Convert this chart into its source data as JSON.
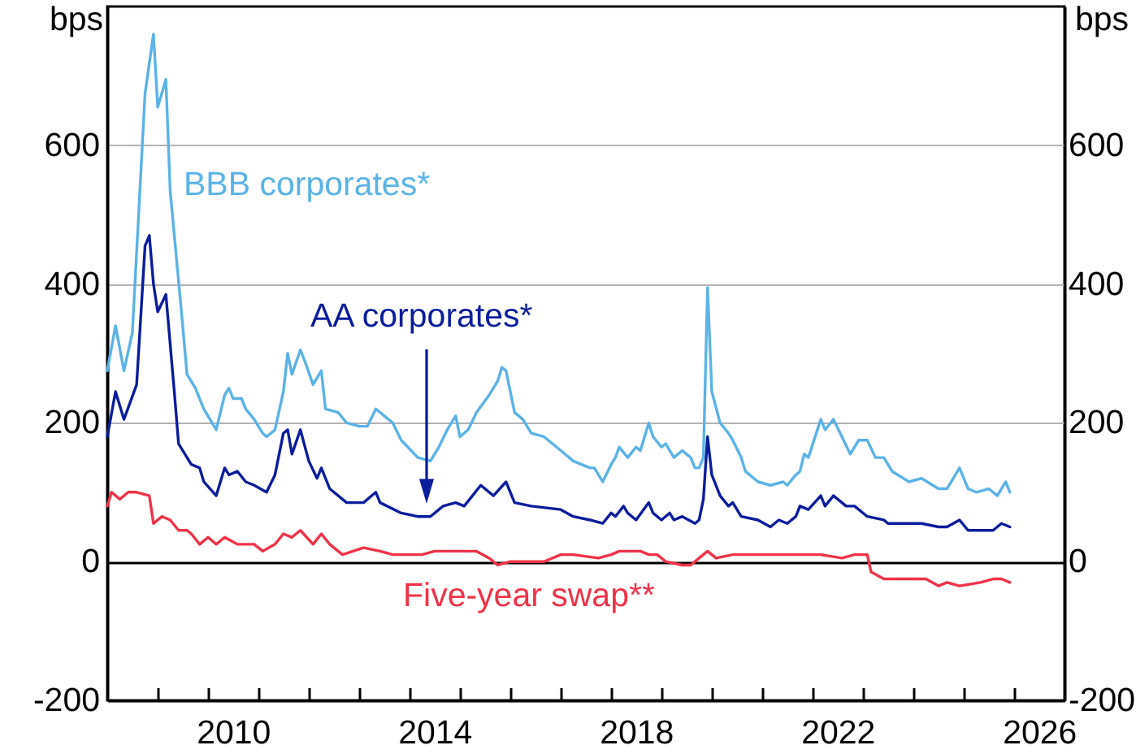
{
  "chart_data": {
    "type": "line",
    "ylabel": "bps",
    "y2label": "bps",
    "xlim": [
      "2008-01",
      "2027-01"
    ],
    "xticks": [
      {
        "value": "2009-01",
        "label": null
      },
      {
        "value": "2010-01",
        "label": null
      },
      {
        "value": "2010-07",
        "label": "2010"
      },
      {
        "value": "2011-01",
        "label": null
      },
      {
        "value": "2012-01",
        "label": null
      },
      {
        "value": "2013-01",
        "label": null
      },
      {
        "value": "2014-01",
        "label": null
      },
      {
        "value": "2014-07",
        "label": "2014"
      },
      {
        "value": "2015-01",
        "label": null
      },
      {
        "value": "2016-01",
        "label": null
      },
      {
        "value": "2017-01",
        "label": null
      },
      {
        "value": "2018-01",
        "label": null
      },
      {
        "value": "2018-07",
        "label": "2018"
      },
      {
        "value": "2019-01",
        "label": null
      },
      {
        "value": "2020-01",
        "label": null
      },
      {
        "value": "2021-01",
        "label": null
      },
      {
        "value": "2022-01",
        "label": null
      },
      {
        "value": "2022-07",
        "label": "2022"
      },
      {
        "value": "2023-01",
        "label": null
      },
      {
        "value": "2024-01",
        "label": null
      },
      {
        "value": "2025-01",
        "label": null
      },
      {
        "value": "2026-01",
        "label": null
      },
      {
        "value": "2026-07",
        "label": "2026"
      }
    ],
    "ylim": [
      -200,
      800
    ],
    "yticks": [
      -200,
      0,
      200,
      400,
      600
    ],
    "y2lim": [
      -200,
      800
    ],
    "y2ticks": [
      -200,
      0,
      200,
      400,
      600
    ],
    "grid": "y",
    "series": [
      {
        "name": "BBB corporates*",
        "color": "#5bb3e6",
        "x": [
          "2008-01",
          "2008-03",
          "2008-05",
          "2008-07",
          "2008-10",
          "2008-12",
          "2009-01",
          "2009-03",
          "2009-04",
          "2009-07",
          "2009-08",
          "2009-10",
          "2009-12",
          "2010-03",
          "2010-05",
          "2010-06",
          "2010-07",
          "2010-09",
          "2010-10",
          "2010-12",
          "2011-02",
          "2011-03",
          "2011-05",
          "2011-07",
          "2011-08",
          "2011-09",
          "2011-11",
          "2011-12",
          "2012-02",
          "2012-04",
          "2012-05",
          "2012-08",
          "2012-10",
          "2013-01",
          "2013-03",
          "2013-05",
          "2013-07",
          "2013-09",
          "2013-11",
          "2014-03",
          "2014-06",
          "2014-08",
          "2014-10",
          "2014-12",
          "2015-01",
          "2015-03",
          "2015-05",
          "2015-08",
          "2015-10",
          "2015-11",
          "2015-12",
          "2016-02",
          "2016-04",
          "2016-06",
          "2016-09",
          "2017-01",
          "2017-04",
          "2017-08",
          "2017-09",
          "2017-11",
          "2018-01",
          "2018-02",
          "2018-03",
          "2018-05",
          "2018-07",
          "2018-08",
          "2018-10",
          "2018-11",
          "2019-01",
          "2019-02",
          "2019-04",
          "2019-06",
          "2019-08",
          "2019-09",
          "2019-10",
          "2019-11",
          "2019-12",
          "2020-01",
          "2020-03",
          "2020-05",
          "2020-06",
          "2020-08",
          "2020-09",
          "2020-12",
          "2021-03",
          "2021-06",
          "2021-07",
          "2021-09",
          "2021-10",
          "2021-11",
          "2021-12",
          "2022-03",
          "2022-04",
          "2022-06",
          "2022-08",
          "2022-10",
          "2022-12",
          "2023-02",
          "2023-04",
          "2023-06",
          "2023-08",
          "2023-12",
          "2024-03",
          "2024-07",
          "2024-09",
          "2024-12",
          "2025-02",
          "2025-04",
          "2025-07",
          "2025-09",
          "2025-11",
          "2025-12"
        ],
        "values": [
          275,
          340,
          275,
          330,
          675,
          760,
          655,
          695,
          535,
          340,
          270,
          250,
          220,
          190,
          240,
          250,
          235,
          235,
          220,
          205,
          185,
          180,
          190,
          245,
          300,
          270,
          305,
          290,
          255,
          275,
          220,
          215,
          200,
          195,
          195,
          220,
          210,
          200,
          175,
          150,
          145,
          165,
          190,
          210,
          180,
          190,
          215,
          240,
          260,
          280,
          275,
          215,
          205,
          185,
          180,
          160,
          145,
          135,
          135,
          115,
          140,
          150,
          165,
          150,
          165,
          160,
          200,
          180,
          165,
          170,
          150,
          160,
          150,
          135,
          135,
          150,
          395,
          245,
          200,
          185,
          175,
          150,
          130,
          115,
          110,
          115,
          110,
          125,
          130,
          155,
          150,
          205,
          190,
          205,
          180,
          155,
          175,
          175,
          150,
          150,
          130,
          115,
          120,
          105,
          105,
          135,
          105,
          100,
          105,
          95,
          115,
          100
        ]
      },
      {
        "name": "AA corporates*",
        "color": "#0b1d9c",
        "x": [
          "2008-01",
          "2008-03",
          "2008-05",
          "2008-08",
          "2008-10",
          "2008-11",
          "2008-12",
          "2009-01",
          "2009-03",
          "2009-05",
          "2009-06",
          "2009-09",
          "2009-11",
          "2009-12",
          "2010-03",
          "2010-05",
          "2010-06",
          "2010-08",
          "2010-10",
          "2010-12",
          "2011-03",
          "2011-05",
          "2011-07",
          "2011-08",
          "2011-09",
          "2011-11",
          "2012-01",
          "2012-03",
          "2012-04",
          "2012-06",
          "2012-10",
          "2013-02",
          "2013-05",
          "2013-06",
          "2013-11",
          "2014-03",
          "2014-06",
          "2014-09",
          "2014-12",
          "2015-02",
          "2015-06",
          "2015-09",
          "2015-12",
          "2016-02",
          "2016-06",
          "2017-01",
          "2017-04",
          "2017-08",
          "2017-11",
          "2018-01",
          "2018-02",
          "2018-04",
          "2018-05",
          "2018-07",
          "2018-10",
          "2018-11",
          "2019-01",
          "2019-03",
          "2019-04",
          "2019-06",
          "2019-09",
          "2019-10",
          "2019-11",
          "2019-12",
          "2020-01",
          "2020-03",
          "2020-05",
          "2020-06",
          "2020-08",
          "2020-12",
          "2021-03",
          "2021-05",
          "2021-07",
          "2021-09",
          "2021-10",
          "2021-12",
          "2022-03",
          "2022-04",
          "2022-06",
          "2022-09",
          "2022-11",
          "2023-02",
          "2023-06",
          "2023-07",
          "2023-11",
          "2024-03",
          "2024-07",
          "2024-09",
          "2024-12",
          "2025-02",
          "2025-05",
          "2025-08",
          "2025-10",
          "2025-12"
        ],
        "values": [
          180,
          245,
          205,
          255,
          455,
          470,
          400,
          360,
          385,
          245,
          170,
          140,
          135,
          115,
          95,
          135,
          125,
          130,
          115,
          110,
          100,
          125,
          185,
          190,
          155,
          190,
          145,
          120,
          135,
          105,
          85,
          85,
          100,
          85,
          70,
          65,
          65,
          80,
          85,
          80,
          110,
          95,
          115,
          85,
          80,
          75,
          65,
          60,
          55,
          70,
          65,
          80,
          70,
          60,
          85,
          70,
          60,
          70,
          60,
          65,
          55,
          60,
          90,
          180,
          125,
          95,
          80,
          85,
          65,
          60,
          50,
          60,
          55,
          65,
          80,
          75,
          95,
          80,
          95,
          80,
          80,
          65,
          60,
          55,
          55,
          55,
          50,
          50,
          60,
          45,
          45,
          45,
          55,
          50
        ]
      },
      {
        "name": "Five-year swap**",
        "color": "#ee3348",
        "x": [
          "2008-01",
          "2008-02",
          "2008-04",
          "2008-06",
          "2008-08",
          "2008-11",
          "2008-12",
          "2009-02",
          "2009-04",
          "2009-06",
          "2009-08",
          "2009-09",
          "2009-11",
          "2010-01",
          "2010-03",
          "2010-05",
          "2010-08",
          "2010-10",
          "2010-12",
          "2011-02",
          "2011-05",
          "2011-07",
          "2011-09",
          "2011-11",
          "2012-02",
          "2012-04",
          "2012-06",
          "2012-09",
          "2013-02",
          "2013-06",
          "2013-09",
          "2013-12",
          "2014-04",
          "2014-07",
          "2014-12",
          "2015-05",
          "2015-08",
          "2015-10",
          "2016-01",
          "2016-05",
          "2016-09",
          "2017-01",
          "2017-04",
          "2017-10",
          "2018-01",
          "2018-03",
          "2018-08",
          "2018-10",
          "2018-12",
          "2019-02",
          "2019-06",
          "2019-08",
          "2019-10",
          "2019-12",
          "2020-02",
          "2020-06",
          "2020-12",
          "2021-05",
          "2021-11",
          "2022-03",
          "2022-08",
          "2022-11",
          "2023-02",
          "2023-03",
          "2023-06",
          "2023-09",
          "2023-12",
          "2024-04",
          "2024-07",
          "2024-09",
          "2024-12",
          "2025-05",
          "2025-08",
          "2025-10",
          "2025-12"
        ],
        "values": [
          80,
          100,
          90,
          100,
          100,
          95,
          55,
          65,
          60,
          45,
          45,
          40,
          25,
          35,
          25,
          35,
          25,
          25,
          25,
          15,
          25,
          40,
          35,
          45,
          25,
          40,
          25,
          10,
          20,
          15,
          10,
          10,
          10,
          15,
          15,
          15,
          5,
          -5,
          0,
          0,
          0,
          10,
          10,
          5,
          10,
          15,
          15,
          10,
          10,
          0,
          -5,
          -5,
          5,
          15,
          5,
          10,
          10,
          10,
          10,
          10,
          5,
          10,
          10,
          -15,
          -25,
          -25,
          -25,
          -25,
          -35,
          -30,
          -35,
          -30,
          -25,
          -25,
          -30
        ]
      }
    ]
  }
}
